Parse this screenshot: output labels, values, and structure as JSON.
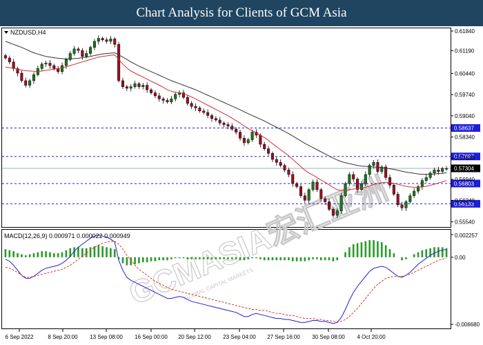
{
  "header": {
    "title": "Chart Analysis for Clients of GCM Asia"
  },
  "watermark": {
    "text": "GCMASIA宏汇亚洲",
    "subtext": "GLOBAL CAPITAL MARKETS"
  },
  "chart_data": [
    {
      "type": "candlestick",
      "symbol_label": "NZDUSD,H4",
      "y_ticks": [
        "0.61840",
        "0.61190",
        "0.60440",
        "0.59740",
        "0.59040",
        "0.58340",
        "0.57640",
        "0.56940",
        "0.56240",
        "0.55540"
      ],
      "ylim": [
        0.5548,
        0.6184
      ],
      "price_line": {
        "value": 0.57304,
        "label": "0.57304",
        "color": "#000000"
      },
      "levels": [
        {
          "value": 0.58637,
          "label": "0.58637"
        },
        {
          "value": 0.57697,
          "label": "0.57697"
        },
        {
          "value": 0.56803,
          "label": "0.56803"
        },
        {
          "value": 0.56133,
          "label": "0.56133"
        }
      ],
      "level_color": "#1e1ed8",
      "ma_fast_color": "#d03030",
      "ma_slow_color": "#333333",
      "candle_bull_color": "#1a7a1a",
      "candle_bear_color": "#a01020",
      "closes": [
        0.6095,
        0.6082,
        0.606,
        0.6045,
        0.602,
        0.6005,
        0.602,
        0.604,
        0.606,
        0.6075,
        0.6078,
        0.607,
        0.606,
        0.605,
        0.607,
        0.609,
        0.611,
        0.6125,
        0.612,
        0.61,
        0.611,
        0.613,
        0.615,
        0.616,
        0.6155,
        0.615,
        0.6158,
        0.614,
        0.602,
        0.6,
        0.5995,
        0.6,
        0.601,
        0.6,
        0.6005,
        0.599,
        0.598,
        0.597,
        0.596,
        0.5955,
        0.595,
        0.596,
        0.5975,
        0.598,
        0.5965,
        0.5945,
        0.5935,
        0.593,
        0.592,
        0.5915,
        0.5905,
        0.5895,
        0.589,
        0.588,
        0.5875,
        0.587,
        0.586,
        0.585,
        0.583,
        0.5815,
        0.5825,
        0.585,
        0.584,
        0.581,
        0.5795,
        0.578,
        0.576,
        0.575,
        0.574,
        0.5725,
        0.571,
        0.568,
        0.567,
        0.564,
        0.5625,
        0.566,
        0.5685,
        0.566,
        0.563,
        0.562,
        0.5595,
        0.5575,
        0.559,
        0.564,
        0.568,
        0.571,
        0.5695,
        0.566,
        0.568,
        0.571,
        0.574,
        0.575,
        0.572,
        0.5735,
        0.57,
        0.5675,
        0.5645,
        0.561,
        0.56,
        0.562,
        0.564,
        0.5655,
        0.567,
        0.569,
        0.57,
        0.5715,
        0.5725,
        0.572,
        0.573,
        0.573
      ],
      "ma_fast": [
        0.6065,
        0.6063,
        0.6061,
        0.6058,
        0.6055,
        0.6053,
        0.6052,
        0.6051,
        0.605,
        0.6052,
        0.6054,
        0.6056,
        0.6058,
        0.606,
        0.6063,
        0.6066,
        0.607,
        0.6074,
        0.6078,
        0.6082,
        0.6086,
        0.609,
        0.6094,
        0.6098,
        0.61,
        0.6102,
        0.6104,
        0.6105,
        0.609,
        0.6075,
        0.6062,
        0.6052,
        0.6045,
        0.6038,
        0.6032,
        0.6025,
        0.6018,
        0.6012,
        0.6005,
        0.5998,
        0.599,
        0.5985,
        0.5982,
        0.598,
        0.5977,
        0.5972,
        0.5966,
        0.596,
        0.5953,
        0.5946,
        0.5939,
        0.5932,
        0.5925,
        0.5918,
        0.5911,
        0.5904,
        0.5896,
        0.5888,
        0.588,
        0.587,
        0.5862,
        0.5855,
        0.5848,
        0.584,
        0.5832,
        0.5823,
        0.5812,
        0.5802,
        0.5792,
        0.5782,
        0.5772,
        0.576,
        0.5748,
        0.5736,
        0.5724,
        0.5715,
        0.5708,
        0.57,
        0.5692,
        0.5684,
        0.5676,
        0.5667,
        0.566,
        0.5657,
        0.5657,
        0.566,
        0.5662,
        0.5663,
        0.5665,
        0.5668,
        0.5672,
        0.5677,
        0.568,
        0.5683,
        0.5684,
        0.5683,
        0.5681,
        0.5678,
        0.5674,
        0.5671,
        0.5669,
        0.5668,
        0.5668,
        0.5669,
        0.5671,
        0.5674,
        0.5678,
        0.5682,
        0.5686,
        0.569
      ],
      "ma_slow": [
        0.615,
        0.6145,
        0.614,
        0.6135,
        0.613,
        0.6124,
        0.6118,
        0.6112,
        0.6108,
        0.6104,
        0.61,
        0.6098,
        0.6096,
        0.6094,
        0.6093,
        0.6092,
        0.6092,
        0.6093,
        0.6094,
        0.6096,
        0.6098,
        0.61,
        0.6103,
        0.6106,
        0.6108,
        0.611,
        0.6111,
        0.6112,
        0.6105,
        0.6098,
        0.609,
        0.6082,
        0.6075,
        0.6068,
        0.6062,
        0.6056,
        0.605,
        0.6044,
        0.6038,
        0.6032,
        0.6026,
        0.602,
        0.6015,
        0.601,
        0.6005,
        0.6,
        0.5995,
        0.599,
        0.5984,
        0.5978,
        0.5972,
        0.5966,
        0.596,
        0.5954,
        0.5948,
        0.5942,
        0.5936,
        0.593,
        0.5924,
        0.5917,
        0.5911,
        0.5905,
        0.5899,
        0.5893,
        0.5887,
        0.588,
        0.5873,
        0.5866,
        0.5859,
        0.5852,
        0.5845,
        0.5837,
        0.5829,
        0.5821,
        0.5813,
        0.5806,
        0.5799,
        0.5792,
        0.5785,
        0.5778,
        0.5771,
        0.5764,
        0.5758,
        0.5753,
        0.5749,
        0.5746,
        0.5743,
        0.574,
        0.5738,
        0.5737,
        0.5736,
        0.5735,
        0.5734,
        0.5733,
        0.5731,
        0.5729,
        0.5727,
        0.5724,
        0.5721,
        0.5718,
        0.5716,
        0.5714,
        0.5712,
        0.5711,
        0.5711,
        0.5711,
        0.5712,
        0.5713,
        0.5714,
        0.5716
      ]
    },
    {
      "type": "macd",
      "label": "MACD(12,26,9) 0.000971 0.000022 0.000949",
      "y_ticks": [
        "0.002257",
        "0.00",
        "-0.006680"
      ],
      "ylim": [
        -0.00668,
        0.002257
      ],
      "histogram_color": "#2a9a2a",
      "macd_color": "#1e1ed8",
      "signal_color": "#e03020",
      "histogram": [
        0.0008,
        0.0007,
        0.0006,
        0.0004,
        0.0003,
        0.0002,
        0.0003,
        0.0004,
        0.0005,
        0.0006,
        0.0006,
        0.0005,
        0.0004,
        0.0004,
        0.0005,
        0.0007,
        0.0009,
        0.001,
        0.001,
        0.0009,
        0.0009,
        0.001,
        0.0011,
        0.0012,
        0.0011,
        0.001,
        0.0009,
        0.0008,
        -0.0002,
        -0.0006,
        -0.0008,
        -0.0008,
        -0.0007,
        -0.0006,
        -0.0005,
        -0.0005,
        -0.0004,
        -0.0004,
        -0.0003,
        -0.0003,
        -0.0003,
        -0.0002,
        -0.0001,
        -0.0001,
        -0.0001,
        -0.0002,
        -0.0002,
        -0.0002,
        -0.0002,
        -0.0002,
        -0.0002,
        -0.0002,
        -0.0002,
        -0.0002,
        -0.0002,
        -0.0002,
        -0.0002,
        -0.0002,
        -0.0003,
        -0.0003,
        -0.0002,
        -0.0001,
        -0.0001,
        -0.0002,
        -0.0003,
        -0.0003,
        -0.0003,
        -0.0003,
        -0.0003,
        -0.0003,
        -0.0003,
        -0.0004,
        -0.0004,
        -0.0004,
        -0.0004,
        -0.0003,
        -0.0002,
        -0.0002,
        -0.0003,
        -0.0003,
        -0.0003,
        -0.0004,
        -0.0003,
        0.0,
        0.0005,
        0.001,
        0.0013,
        0.0014,
        0.0015,
        0.0016,
        0.0017,
        0.0017,
        0.0016,
        0.0015,
        0.0012,
        0.0008,
        0.0004,
        0.0,
        -0.0003,
        -0.0002,
        0.0,
        0.0003,
        0.0005,
        0.0007,
        0.0008,
        0.0009,
        0.001,
        0.001,
        0.001,
        0.0009
      ],
      "macd": [
        -0.0002,
        -0.0004,
        -0.0008,
        -0.0013,
        -0.0018,
        -0.0021,
        -0.0021,
        -0.0019,
        -0.0016,
        -0.0013,
        -0.0011,
        -0.001,
        -0.0009,
        -0.0008,
        -0.0006,
        -0.0003,
        0.0001,
        0.0006,
        0.001,
        0.0013,
        0.0016,
        0.0019,
        0.0021,
        0.0022,
        0.0021,
        0.002,
        0.0018,
        0.0015,
        -0.0003,
        -0.0013,
        -0.002,
        -0.0023,
        -0.0025,
        -0.0027,
        -0.0029,
        -0.0031,
        -0.0033,
        -0.0035,
        -0.0037,
        -0.0039,
        -0.0041,
        -0.0041,
        -0.004,
        -0.0039,
        -0.004,
        -0.0042,
        -0.0044,
        -0.0045,
        -0.0046,
        -0.0047,
        -0.0048,
        -0.0049,
        -0.005,
        -0.0051,
        -0.0052,
        -0.0053,
        -0.0054,
        -0.0055,
        -0.0057,
        -0.0059,
        -0.0059,
        -0.0057,
        -0.0056,
        -0.0057,
        -0.0058,
        -0.0059,
        -0.006,
        -0.0061,
        -0.0061,
        -0.0062,
        -0.0062,
        -0.0063,
        -0.0064,
        -0.0065,
        -0.0065,
        -0.0064,
        -0.0063,
        -0.0063,
        -0.0064,
        -0.0064,
        -0.0065,
        -0.0066,
        -0.0065,
        -0.006,
        -0.0052,
        -0.0043,
        -0.0035,
        -0.0029,
        -0.0024,
        -0.0019,
        -0.0014,
        -0.0011,
        -0.001,
        -0.0009,
        -0.001,
        -0.0013,
        -0.0016,
        -0.0019,
        -0.002,
        -0.0018,
        -0.0015,
        -0.0011,
        -0.0007,
        -0.0004,
        -0.0001,
        0.0002,
        0.0004,
        0.0006,
        0.0007,
        0.0008
      ],
      "signal": [
        -0.001,
        -0.0011,
        -0.0013,
        -0.0015,
        -0.0018,
        -0.002,
        -0.002,
        -0.0019,
        -0.0018,
        -0.0017,
        -0.0016,
        -0.0015,
        -0.0014,
        -0.0013,
        -0.0012,
        -0.001,
        -0.0008,
        -0.0005,
        -0.0002,
        0.0001,
        0.0004,
        0.0007,
        0.001,
        0.0012,
        0.0014,
        0.0015,
        0.0016,
        0.0016,
        0.0013,
        0.0008,
        0.0002,
        -0.0003,
        -0.0008,
        -0.0012,
        -0.0015,
        -0.0018,
        -0.0021,
        -0.0024,
        -0.0026,
        -0.0028,
        -0.003,
        -0.0032,
        -0.0033,
        -0.0034,
        -0.0035,
        -0.0036,
        -0.0037,
        -0.0038,
        -0.0039,
        -0.004,
        -0.0041,
        -0.0042,
        -0.0043,
        -0.0044,
        -0.0045,
        -0.0046,
        -0.0047,
        -0.0048,
        -0.0049,
        -0.005,
        -0.0051,
        -0.0052,
        -0.0052,
        -0.0053,
        -0.0053,
        -0.0054,
        -0.0055,
        -0.0056,
        -0.0056,
        -0.0057,
        -0.0058,
        -0.0058,
        -0.0059,
        -0.006,
        -0.0061,
        -0.0061,
        -0.0061,
        -0.0062,
        -0.0062,
        -0.0063,
        -0.0063,
        -0.0064,
        -0.0064,
        -0.0064,
        -0.0062,
        -0.0059,
        -0.0055,
        -0.0051,
        -0.0046,
        -0.0041,
        -0.0036,
        -0.0031,
        -0.0027,
        -0.0024,
        -0.0021,
        -0.002,
        -0.0019,
        -0.0019,
        -0.0019,
        -0.0018,
        -0.0017,
        -0.0015,
        -0.0013,
        -0.0011,
        -0.0009,
        -0.0007,
        -0.0005,
        -0.0003,
        -0.0002,
        -0.0001
      ]
    }
  ],
  "x_axis": {
    "labels": [
      "6 Sep 2022",
      "8 Sep 20:00",
      "13 Sep 08:00",
      "16 Sep 00:00",
      "20 Sep 12:00",
      "23 Sep 04:00",
      "27 Sep 16:00",
      "30 Sep 08:00",
      "4 Oct 20:00"
    ]
  }
}
